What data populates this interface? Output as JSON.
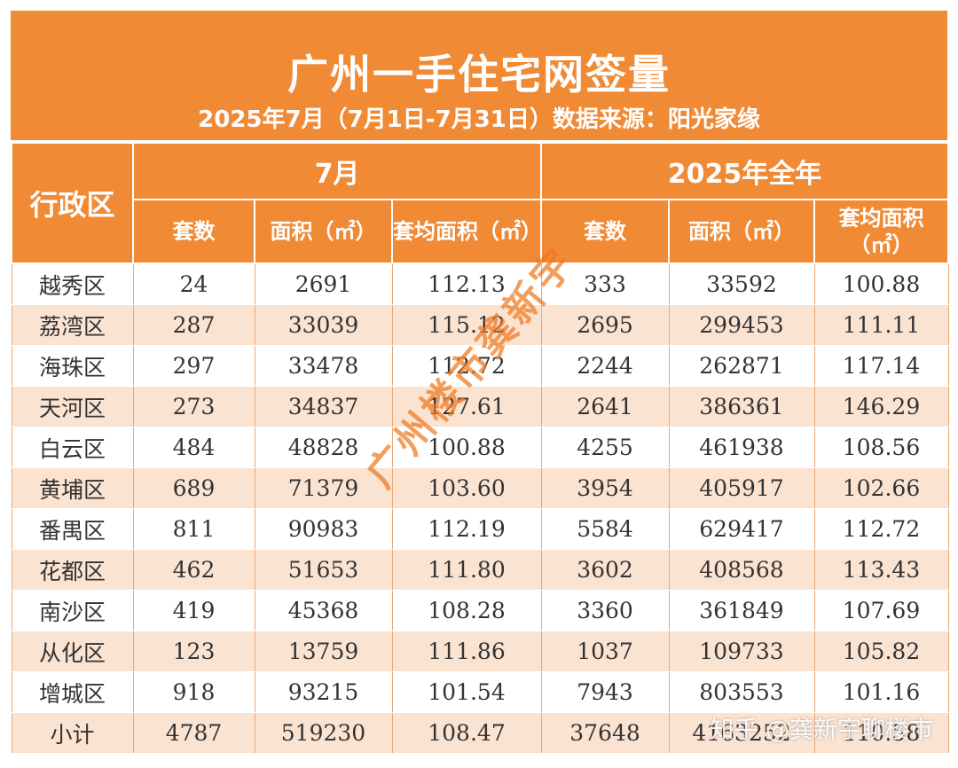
{
  "header": {
    "title": "广州一手住宅网签量",
    "subtitle": "2025年7月（7月1日-7月31日）数据来源：阳光家缘"
  },
  "table": {
    "region_header": "行政区",
    "groups": [
      "7月",
      "2025年全年"
    ],
    "columns": [
      "套数",
      "面积（㎡）",
      "套均面积（㎡）",
      "套数",
      "面积（㎡）",
      "套均面积（㎡）"
    ],
    "rows": [
      [
        "越秀区",
        "24",
        "2691",
        "112.13",
        "333",
        "33592",
        "100.88"
      ],
      [
        "荔湾区",
        "287",
        "33039",
        "115.12",
        "2695",
        "299453",
        "111.11"
      ],
      [
        "海珠区",
        "297",
        "33478",
        "112.72",
        "2244",
        "262871",
        "117.14"
      ],
      [
        "天河区",
        "273",
        "34837",
        "127.61",
        "2641",
        "386361",
        "146.29"
      ],
      [
        "白云区",
        "484",
        "48828",
        "100.88",
        "4255",
        "461938",
        "108.56"
      ],
      [
        "黄埔区",
        "689",
        "71379",
        "103.60",
        "3954",
        "405917",
        "102.66"
      ],
      [
        "番禺区",
        "811",
        "90983",
        "112.19",
        "5584",
        "629417",
        "112.72"
      ],
      [
        "花都区",
        "462",
        "51653",
        "111.80",
        "3602",
        "408568",
        "113.43"
      ],
      [
        "南沙区",
        "419",
        "45368",
        "108.28",
        "3360",
        "361849",
        "107.69"
      ],
      [
        "从化区",
        "123",
        "13759",
        "111.86",
        "1037",
        "109733",
        "105.82"
      ],
      [
        "增城区",
        "918",
        "93215",
        "101.54",
        "7943",
        "803553",
        "101.16"
      ],
      [
        "小计",
        "4787",
        "519230",
        "108.47",
        "37648",
        "4163252",
        "110.58"
      ]
    ]
  },
  "watermark": "广州楼市龚新宇",
  "credit": "知乎 @龚新宇聊楼市",
  "colors": {
    "header": "#f08a35",
    "stripe": "#fbe3d1"
  }
}
